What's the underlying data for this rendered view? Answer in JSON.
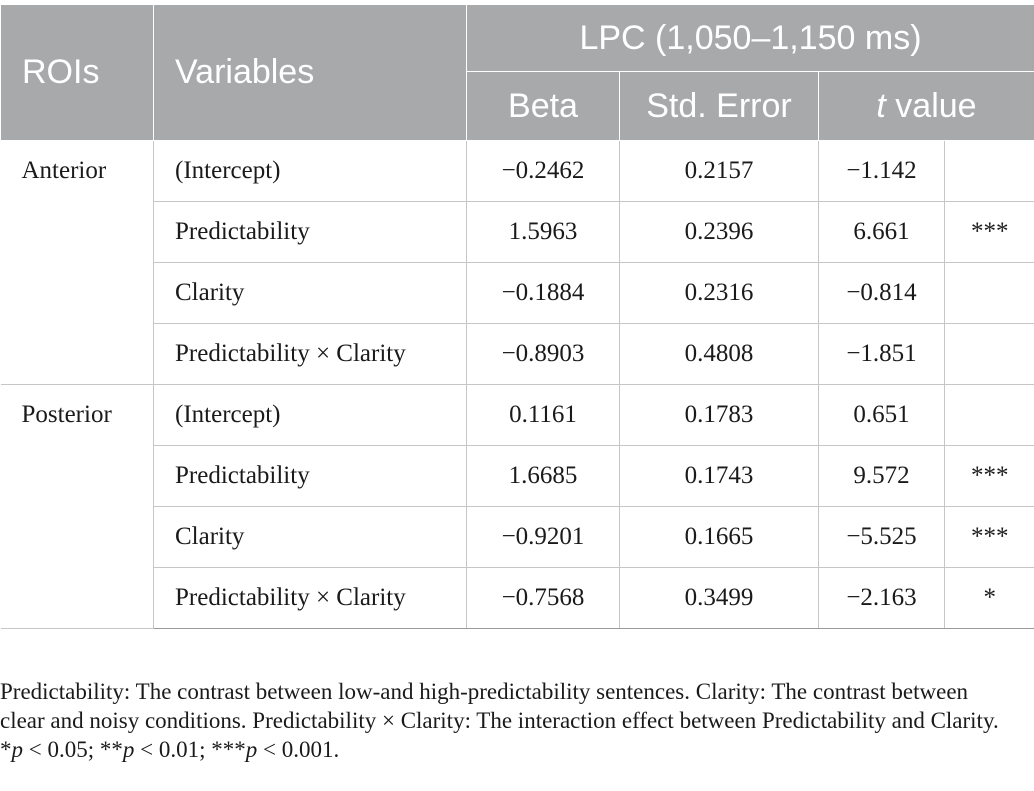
{
  "header": {
    "rois": "ROIs",
    "variables": "Variables",
    "group": "LPC (1,050–1,150 ms)",
    "beta": "Beta",
    "std_error": "Std. Error",
    "t_italic": "t",
    "t_rest": " value"
  },
  "groups": [
    {
      "roi": "Anterior",
      "rows": [
        {
          "variable": "(Intercept)",
          "beta": "−0.2462",
          "se": "0.2157",
          "t": "−1.142",
          "sig": ""
        },
        {
          "variable": "Predictability",
          "beta": "1.5963",
          "se": "0.2396",
          "t": "6.661",
          "sig": "***"
        },
        {
          "variable": "Clarity",
          "beta": "−0.1884",
          "se": "0.2316",
          "t": "−0.814",
          "sig": ""
        },
        {
          "variable": "Predictability × Clarity",
          "beta": "−0.8903",
          "se": "0.4808",
          "t": "−1.851",
          "sig": ""
        }
      ]
    },
    {
      "roi": "Posterior",
      "rows": [
        {
          "variable": "(Intercept)",
          "beta": "0.1161",
          "se": "0.1783",
          "t": "0.651",
          "sig": ""
        },
        {
          "variable": "Predictability",
          "beta": "1.6685",
          "se": "0.1743",
          "t": "9.572",
          "sig": "***"
        },
        {
          "variable": "Clarity",
          "beta": "−0.9201",
          "se": "0.1665",
          "t": "−5.525",
          "sig": "***"
        },
        {
          "variable": "Predictability × Clarity",
          "beta": "−0.7568",
          "se": "0.3499",
          "t": "−2.163",
          "sig": "*"
        }
      ]
    }
  ],
  "footnote": {
    "text": "Predictability: The contrast between low-and high-predictability sentences. Clarity: The contrast between clear and noisy conditions. Predictability × Clarity: The interaction effect between Predictability and Clarity. *",
    "p1": "p",
    "t1": " < 0.05; **",
    "p2": "p",
    "t2": " < 0.01; ***",
    "p3": "p",
    "t3": " < 0.001."
  }
}
